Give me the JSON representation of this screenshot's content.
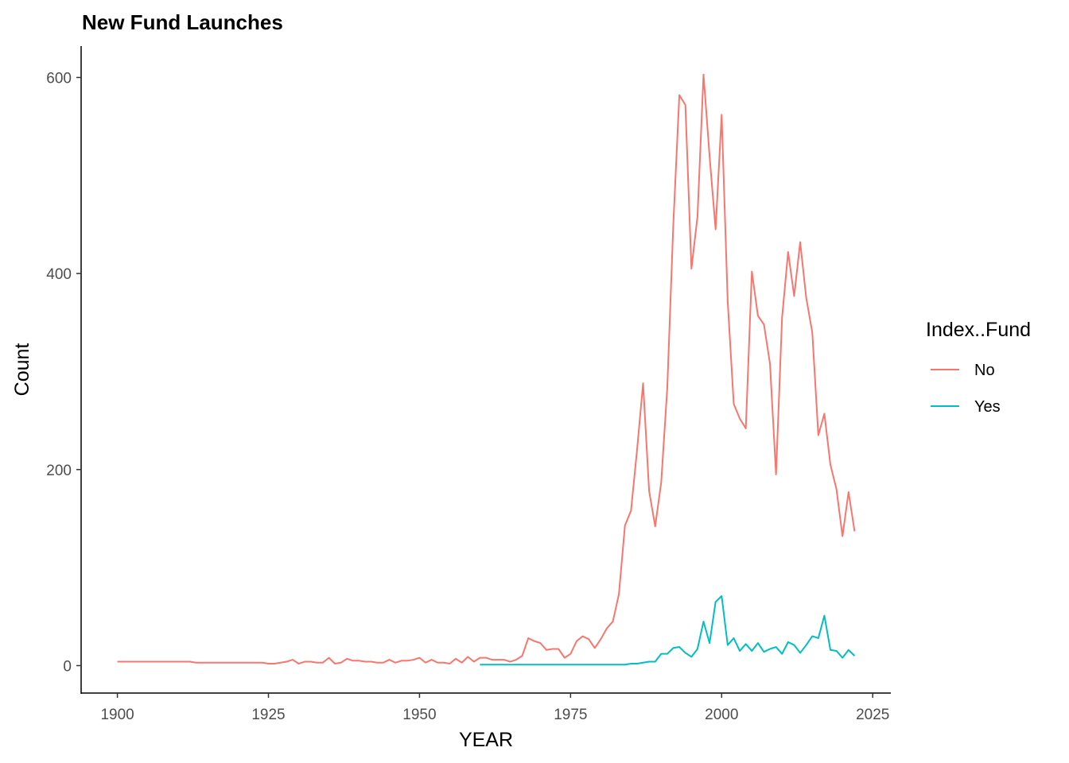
{
  "chart_data": {
    "type": "line",
    "title": "New Fund Launches",
    "xlabel": "YEAR",
    "ylabel": "Count",
    "xlim": [
      1894,
      2028
    ],
    "ylim": [
      -28,
      632
    ],
    "x_ticks": [
      1900,
      1925,
      1950,
      1975,
      2000,
      2025
    ],
    "y_ticks": [
      0,
      200,
      400,
      600
    ],
    "grid": false,
    "legend": {
      "title": "Index..Fund",
      "placement": "right"
    },
    "colors": {
      "No": "#F8766D",
      "Yes": "#00BFC4",
      "axis": "#000000",
      "tick_text": "#4d4d4d"
    },
    "series": [
      {
        "name": "No",
        "color": "#F8766D",
        "points": [
          [
            1900,
            4
          ],
          [
            1912,
            4
          ],
          [
            1913,
            3
          ],
          [
            1924,
            3
          ],
          [
            1925,
            2
          ],
          [
            1926,
            2
          ],
          [
            1927,
            3
          ],
          [
            1928,
            4
          ],
          [
            1929,
            6
          ],
          [
            1930,
            2
          ],
          [
            1931,
            4
          ],
          [
            1932,
            4
          ],
          [
            1933,
            3
          ],
          [
            1934,
            3
          ],
          [
            1935,
            8
          ],
          [
            1936,
            2
          ],
          [
            1937,
            3
          ],
          [
            1938,
            7
          ],
          [
            1939,
            5
          ],
          [
            1940,
            5
          ],
          [
            1941,
            4
          ],
          [
            1942,
            4
          ],
          [
            1943,
            3
          ],
          [
            1944,
            3
          ],
          [
            1945,
            6
          ],
          [
            1946,
            3
          ],
          [
            1947,
            5
          ],
          [
            1948,
            5
          ],
          [
            1949,
            6
          ],
          [
            1950,
            8
          ],
          [
            1951,
            3
          ],
          [
            1952,
            6
          ],
          [
            1953,
            3
          ],
          [
            1954,
            3
          ],
          [
            1955,
            2
          ],
          [
            1956,
            7
          ],
          [
            1957,
            3
          ],
          [
            1958,
            9
          ],
          [
            1959,
            4
          ],
          [
            1960,
            8
          ],
          [
            1961,
            8
          ],
          [
            1962,
            6
          ],
          [
            1963,
            6
          ],
          [
            1964,
            6
          ],
          [
            1965,
            4
          ],
          [
            1966,
            6
          ],
          [
            1967,
            10
          ],
          [
            1968,
            28
          ],
          [
            1969,
            25
          ],
          [
            1970,
            23
          ],
          [
            1971,
            16
          ],
          [
            1972,
            17
          ],
          [
            1973,
            17
          ],
          [
            1974,
            8
          ],
          [
            1975,
            12
          ],
          [
            1976,
            25
          ],
          [
            1977,
            30
          ],
          [
            1978,
            27
          ],
          [
            1979,
            18
          ],
          [
            1980,
            27
          ],
          [
            1981,
            38
          ],
          [
            1982,
            45
          ],
          [
            1983,
            73
          ],
          [
            1984,
            143
          ],
          [
            1985,
            158
          ],
          [
            1986,
            220
          ],
          [
            1987,
            288
          ],
          [
            1988,
            178
          ],
          [
            1989,
            142
          ],
          [
            1990,
            187
          ],
          [
            1991,
            283
          ],
          [
            1992,
            450
          ],
          [
            1993,
            582
          ],
          [
            1994,
            572
          ],
          [
            1995,
            405
          ],
          [
            1996,
            458
          ],
          [
            1997,
            603
          ],
          [
            1998,
            520
          ],
          [
            1999,
            445
          ],
          [
            2000,
            562
          ],
          [
            2001,
            372
          ],
          [
            2002,
            267
          ],
          [
            2003,
            252
          ],
          [
            2004,
            242
          ],
          [
            2005,
            402
          ],
          [
            2006,
            357
          ],
          [
            2007,
            348
          ],
          [
            2008,
            308
          ],
          [
            2009,
            195
          ],
          [
            2010,
            355
          ],
          [
            2011,
            422
          ],
          [
            2012,
            377
          ],
          [
            2013,
            432
          ],
          [
            2014,
            375
          ],
          [
            2015,
            340
          ],
          [
            2016,
            235
          ],
          [
            2017,
            257
          ],
          [
            2018,
            205
          ],
          [
            2019,
            180
          ],
          [
            2020,
            132
          ],
          [
            2021,
            177
          ],
          [
            2022,
            137
          ]
        ]
      },
      {
        "name": "Yes",
        "color": "#00BFC4",
        "points": [
          [
            1960,
            1
          ],
          [
            1984,
            1
          ],
          [
            1985,
            2
          ],
          [
            1986,
            2
          ],
          [
            1987,
            3
          ],
          [
            1988,
            4
          ],
          [
            1989,
            4
          ],
          [
            1990,
            12
          ],
          [
            1991,
            12
          ],
          [
            1992,
            18
          ],
          [
            1993,
            19
          ],
          [
            1994,
            13
          ],
          [
            1995,
            9
          ],
          [
            1996,
            17
          ],
          [
            1997,
            45
          ],
          [
            1998,
            23
          ],
          [
            1999,
            65
          ],
          [
            2000,
            71
          ],
          [
            2001,
            21
          ],
          [
            2002,
            28
          ],
          [
            2003,
            15
          ],
          [
            2004,
            22
          ],
          [
            2005,
            15
          ],
          [
            2006,
            23
          ],
          [
            2007,
            14
          ],
          [
            2008,
            17
          ],
          [
            2009,
            19
          ],
          [
            2010,
            12
          ],
          [
            2011,
            24
          ],
          [
            2012,
            21
          ],
          [
            2013,
            13
          ],
          [
            2014,
            21
          ],
          [
            2015,
            30
          ],
          [
            2016,
            28
          ],
          [
            2017,
            51
          ],
          [
            2018,
            16
          ],
          [
            2019,
            15
          ],
          [
            2020,
            8
          ],
          [
            2021,
            16
          ],
          [
            2022,
            10
          ]
        ]
      }
    ]
  }
}
